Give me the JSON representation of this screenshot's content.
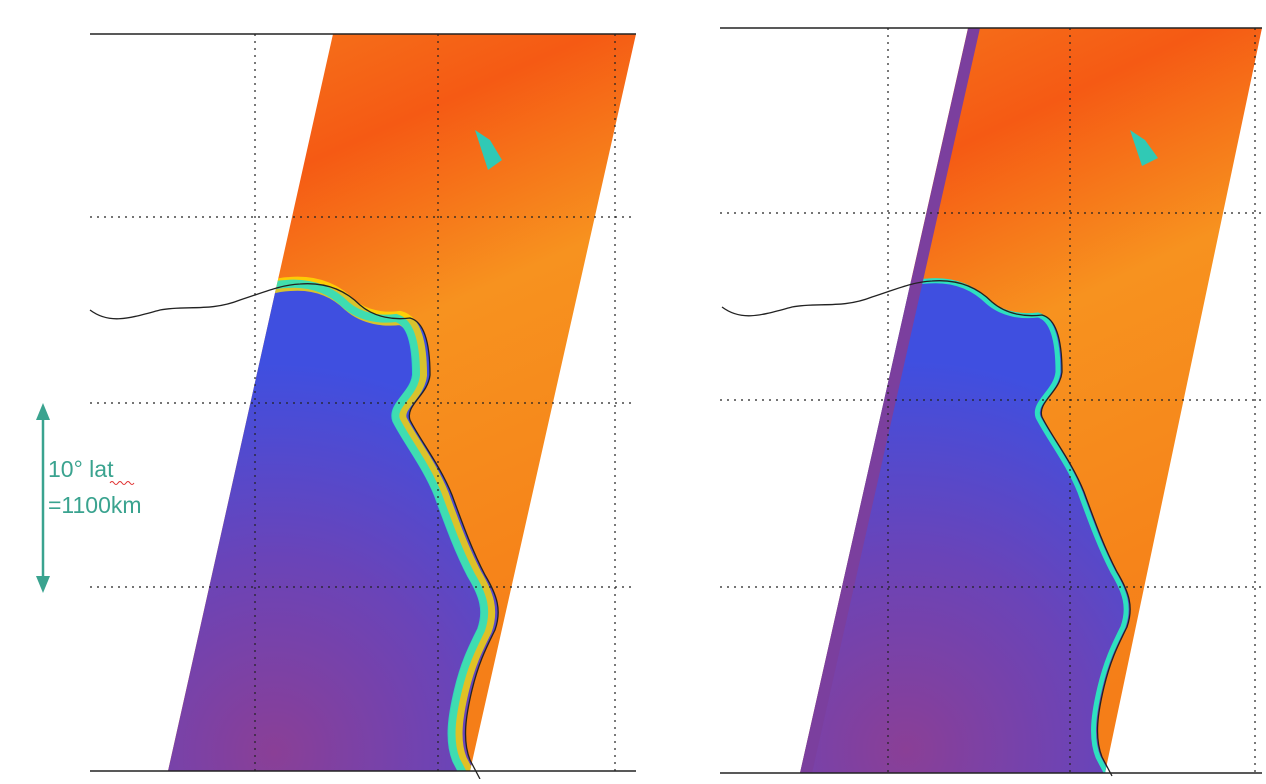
{
  "annotation": {
    "line1": "10° lat",
    "line2": "=1100km"
  }
}
